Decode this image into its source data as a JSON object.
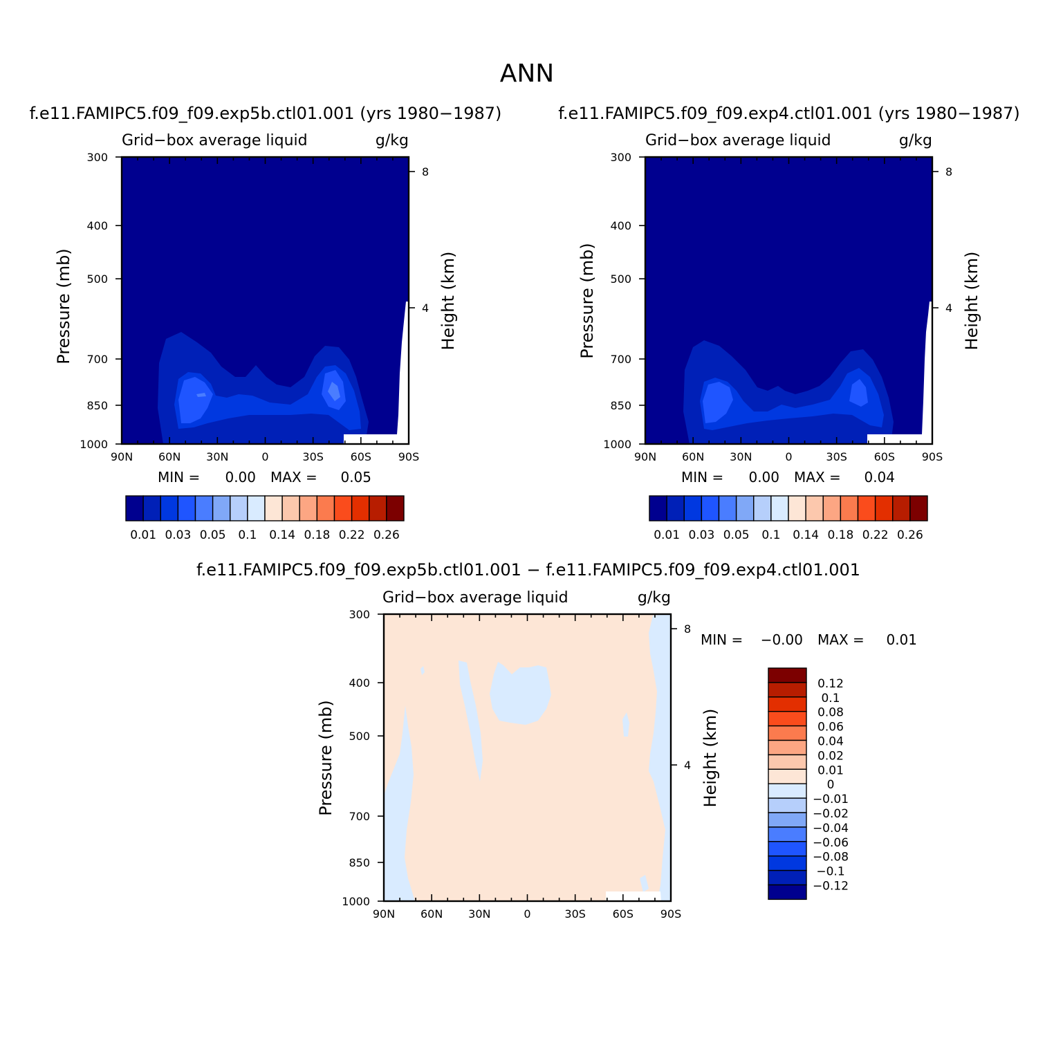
{
  "figure": {
    "season": "ANN"
  },
  "colors": {
    "abs_palette": [
      "#00008f",
      "#0020b7",
      "#0038e0",
      "#1f55ff",
      "#4a7dff",
      "#80a8f7",
      "#b6cffb",
      "#d9ebff",
      "#fde6d6",
      "#fcc8ad",
      "#fca683",
      "#fb7b4e",
      "#fa4c1c",
      "#e32f00",
      "#b71d00",
      "#7c0000"
    ],
    "diff_palette": [
      "#00008f",
      "#0020b7",
      "#0038e0",
      "#1f55ff",
      "#4a7dff",
      "#80a8f7",
      "#b6cffb",
      "#d9ebff",
      "#fde6d6",
      "#fcc8ad",
      "#fca683",
      "#fb7b4e",
      "#fa4c1c",
      "#e32f00",
      "#b71d00",
      "#7c0000"
    ]
  },
  "panels": {
    "p1": {
      "case": "f.e11.FAMIPC5.f09_f09.exp5b.ctl01.001 (yrs 1980−1987)",
      "variable": "Grid−box average liquid",
      "units": "g/kg",
      "ylabel": "Pressure (mb)",
      "ylabel_right": "Height (km)",
      "stats": {
        "min_label": "MIN =",
        "min": "0.00",
        "max_label": "MAX =",
        "max": "0.05"
      }
    },
    "p2": {
      "case": "f.e11.FAMIPC5.f09_f09.exp4.ctl01.001 (yrs 1980−1987)",
      "variable": "Grid−box average liquid",
      "units": "g/kg",
      "ylabel": "Pressure (mb)",
      "ylabel_right": "Height (km)",
      "stats": {
        "min_label": "MIN =",
        "min": "0.00",
        "max_label": "MAX =",
        "max": "0.04"
      }
    },
    "p3": {
      "case": "f.e11.FAMIPC5.f09_f09.exp5b.ctl01.001 − f.e11.FAMIPC5.f09_f09.exp4.ctl01.001",
      "variable": "Grid−box average liquid",
      "units": "g/kg",
      "ylabel": "Pressure (mb)",
      "ylabel_right": "Height (km)",
      "stats": {
        "min_label": "MIN =",
        "min": "−0.00",
        "max_label": "MAX =",
        "max": "0.01"
      }
    }
  },
  "chart_data": [
    {
      "type": "heatmap",
      "x_ticks": [
        "90N",
        "60N",
        "30N",
        "0",
        "30S",
        "60S",
        "90S"
      ],
      "y_ticks": [
        "300",
        "400",
        "500",
        "700",
        "850",
        "1000"
      ],
      "y_tick_values": [
        300,
        400,
        500,
        700,
        850,
        1000
      ],
      "y2_ticks": [
        "8",
        "4"
      ],
      "y2_tick_values": [
        8,
        4
      ],
      "xlim": [
        90,
        -90
      ],
      "ylim": [
        1000,
        300
      ],
      "yscale": "log",
      "colorbar_labels": [
        "0.01",
        "0.03",
        "0.05",
        "0.1",
        "0.14",
        "0.18",
        "0.22",
        "0.26"
      ],
      "colorbar_levels": [
        0.01,
        0.02,
        0.03,
        0.04,
        0.05,
        0.07,
        0.1,
        0.12,
        0.14,
        0.16,
        0.18,
        0.2,
        0.22,
        0.24,
        0.26
      ],
      "min": 0.0,
      "max": 0.05
    },
    {
      "type": "heatmap",
      "x_ticks": [
        "90N",
        "60N",
        "30N",
        "0",
        "30S",
        "60S",
        "90S"
      ],
      "y_ticks": [
        "300",
        "400",
        "500",
        "700",
        "850",
        "1000"
      ],
      "y_tick_values": [
        300,
        400,
        500,
        700,
        850,
        1000
      ],
      "y2_ticks": [
        "8",
        "4"
      ],
      "y2_tick_values": [
        8,
        4
      ],
      "xlim": [
        90,
        -90
      ],
      "ylim": [
        1000,
        300
      ],
      "yscale": "log",
      "colorbar_labels": [
        "0.01",
        "0.03",
        "0.05",
        "0.1",
        "0.14",
        "0.18",
        "0.22",
        "0.26"
      ],
      "colorbar_levels": [
        0.01,
        0.02,
        0.03,
        0.04,
        0.05,
        0.07,
        0.1,
        0.12,
        0.14,
        0.16,
        0.18,
        0.2,
        0.22,
        0.24,
        0.26
      ],
      "min": 0.0,
      "max": 0.04
    },
    {
      "type": "heatmap",
      "x_ticks": [
        "90N",
        "60N",
        "30N",
        "0",
        "30S",
        "60S",
        "90S"
      ],
      "y_ticks": [
        "300",
        "400",
        "500",
        "700",
        "850",
        "1000"
      ],
      "y_tick_values": [
        300,
        400,
        500,
        700,
        850,
        1000
      ],
      "y2_ticks": [
        "8",
        "4"
      ],
      "y2_tick_values": [
        8,
        4
      ],
      "xlim": [
        90,
        -90
      ],
      "ylim": [
        1000,
        300
      ],
      "yscale": "log",
      "colorbar_labels": [
        "0.12",
        "0.1",
        "0.08",
        "0.06",
        "0.04",
        "0.02",
        "0.01",
        "0",
        "−0.01",
        "−0.02",
        "−0.04",
        "−0.06",
        "−0.08",
        "−0.1",
        "−0.12"
      ],
      "colorbar_levels": [
        -0.12,
        -0.1,
        -0.08,
        -0.06,
        -0.04,
        -0.02,
        -0.01,
        0,
        0.01,
        0.02,
        0.04,
        0.06,
        0.08,
        0.1,
        0.12
      ],
      "min": -0.0,
      "max": 0.01
    }
  ]
}
